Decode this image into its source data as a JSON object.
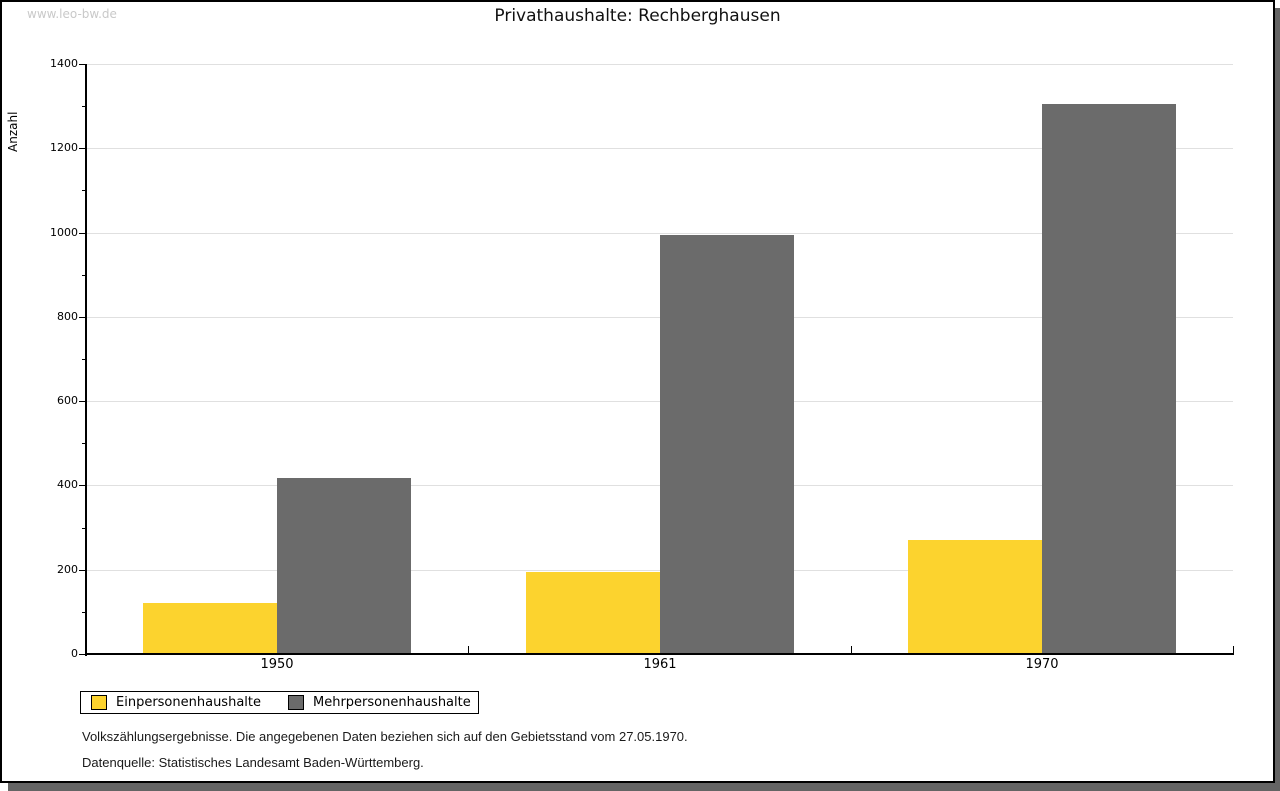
{
  "window": {
    "watermark": "www.leo-bw.de"
  },
  "title": "Privathaushalte: Rechberghausen",
  "chart_data": {
    "type": "bar",
    "title": "Privathaushalte: Rechberghausen",
    "xlabel": "",
    "ylabel": "Anzahl",
    "categories": [
      "1950",
      "1961",
      "1970"
    ],
    "series": [
      {
        "name": "Einpersonenhaushalte",
        "color": "#fcd32e",
        "values": [
          120,
          195,
          270
        ]
      },
      {
        "name": "Mehrpersonenhaushalte",
        "color": "#6b6b6b",
        "values": [
          418,
          995,
          1305
        ]
      }
    ],
    "ylim": [
      0,
      1400
    ],
    "ytick_step": 200,
    "yminor_step": 100,
    "ytick_labels": [
      "0",
      "200",
      "400",
      "600",
      "800",
      "1000",
      "1200",
      "1400"
    ],
    "grid": true,
    "gridline_color": "#e0e0e0",
    "legend_position": "bottom-left"
  },
  "footnotes": {
    "line1": "Volkszählungsergebnisse. Die angegebenen Daten beziehen sich auf den Gebietsstand vom 27.05.1970.",
    "line2": "Datenquelle: Statistisches Landesamt Baden-Württemberg."
  }
}
